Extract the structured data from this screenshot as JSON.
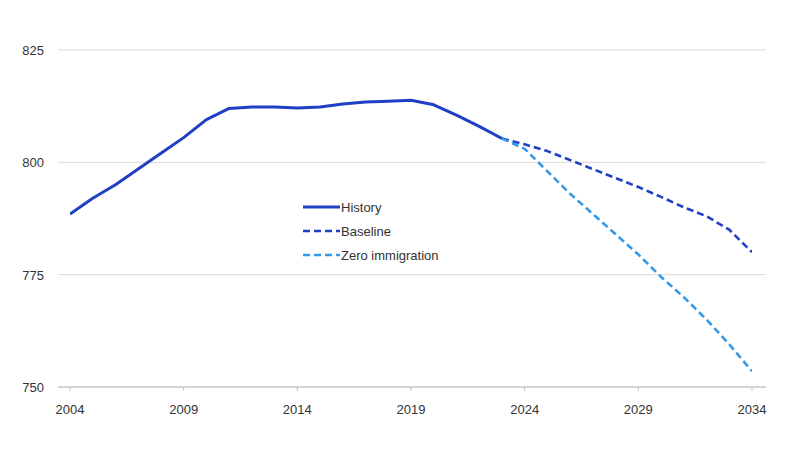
{
  "chart_data": {
    "type": "line",
    "x": [
      2004,
      2005,
      2006,
      2007,
      2008,
      2009,
      2010,
      2011,
      2012,
      2013,
      2014,
      2015,
      2016,
      2017,
      2018,
      2019,
      2020,
      2021,
      2022,
      2023,
      2024,
      2025,
      2026,
      2027,
      2028,
      2029,
      2030,
      2031,
      2032,
      2033,
      2034
    ],
    "series": [
      {
        "name": "History",
        "color": "#1f3fc4",
        "line_style": "solid",
        "values": [
          788.5,
          792,
          795,
          798.5,
          802,
          805.5,
          809.5,
          812,
          812.3,
          812.3,
          812.1,
          812.3,
          813,
          813.4,
          813.6,
          813.8,
          812.8,
          810.5,
          808,
          805.3,
          null,
          null,
          null,
          null,
          null,
          null,
          null,
          null,
          null,
          null,
          null
        ]
      },
      {
        "name": "Baseline",
        "color": "#1f3fc4",
        "line_style": "dashed",
        "values": [
          null,
          null,
          null,
          null,
          null,
          null,
          null,
          null,
          null,
          null,
          null,
          null,
          null,
          null,
          null,
          null,
          null,
          null,
          null,
          805.3,
          804,
          802.5,
          800.5,
          798.5,
          796.5,
          794.5,
          792.3,
          790,
          788,
          785,
          780
        ]
      },
      {
        "name": "Zero immigration",
        "color": "#3399e6",
        "line_style": "dashed",
        "values": [
          null,
          null,
          null,
          null,
          null,
          null,
          null,
          null,
          null,
          null,
          null,
          null,
          null,
          null,
          null,
          null,
          null,
          null,
          null,
          805.3,
          803,
          798,
          793,
          788.5,
          784,
          779.5,
          774.5,
          770,
          765,
          759.5,
          753.5
        ]
      }
    ],
    "xlim": [
      2004,
      2034
    ],
    "xticks": [
      2004,
      2009,
      2014,
      2019,
      2024,
      2029,
      2034
    ],
    "ylim": [
      750,
      825
    ],
    "yticks": [
      750,
      775,
      800,
      825
    ],
    "grid": true,
    "legend": "center"
  }
}
